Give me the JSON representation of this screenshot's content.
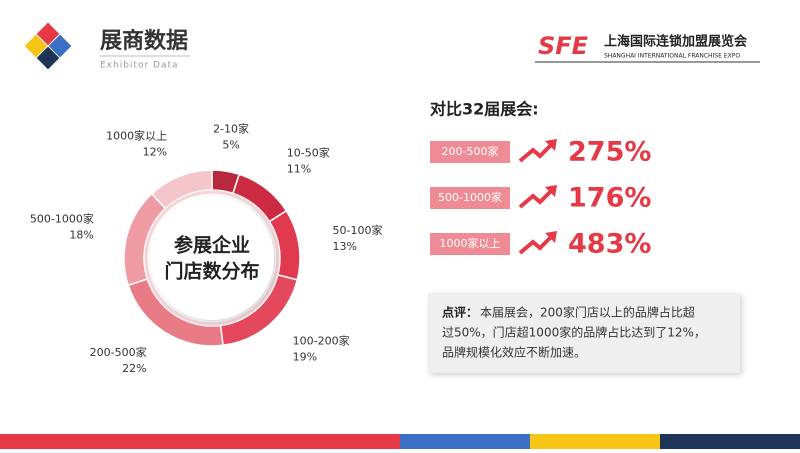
{
  "header": {
    "title": "展商数据",
    "subtitle": "Exhibitor Data",
    "logo": "SFE",
    "organizer": "上海国际连锁加盟展览会",
    "organizer_en": "SHANGHAI INTERNATIONAL FRANCHISE EXPO"
  },
  "chart_data": {
    "type": "pie",
    "title": [
      "参展企业",
      "门店数分布"
    ],
    "categories": [
      "2-10家",
      "10-50家",
      "50-100家",
      "100-200家",
      "200-500家",
      "500-1000家",
      "1000家以上"
    ],
    "values": [
      5,
      11,
      13,
      19,
      22,
      18,
      12
    ],
    "value_labels": [
      "5%",
      "11%",
      "13%",
      "19%",
      "22%",
      "18%",
      "12%"
    ],
    "colors": [
      "#b8283d",
      "#cc2b41",
      "#e03a4f",
      "#e4485c",
      "#e97b86",
      "#ef9ba3",
      "#f4c5ca"
    ]
  },
  "comparison": {
    "heading": "对比32届展会:",
    "items": [
      {
        "label": "200-500家",
        "value": "275%"
      },
      {
        "label": "500-1000家",
        "value": "176%"
      },
      {
        "label": "1000家以上",
        "value": "483%"
      }
    ]
  },
  "note": {
    "lead": "点评：",
    "lines": [
      "本届展会，200家门店以上的品牌占比超",
      "过50%，门店超1000家的品牌占比达到了12%，",
      "品牌规模化效应不断加速。"
    ]
  }
}
